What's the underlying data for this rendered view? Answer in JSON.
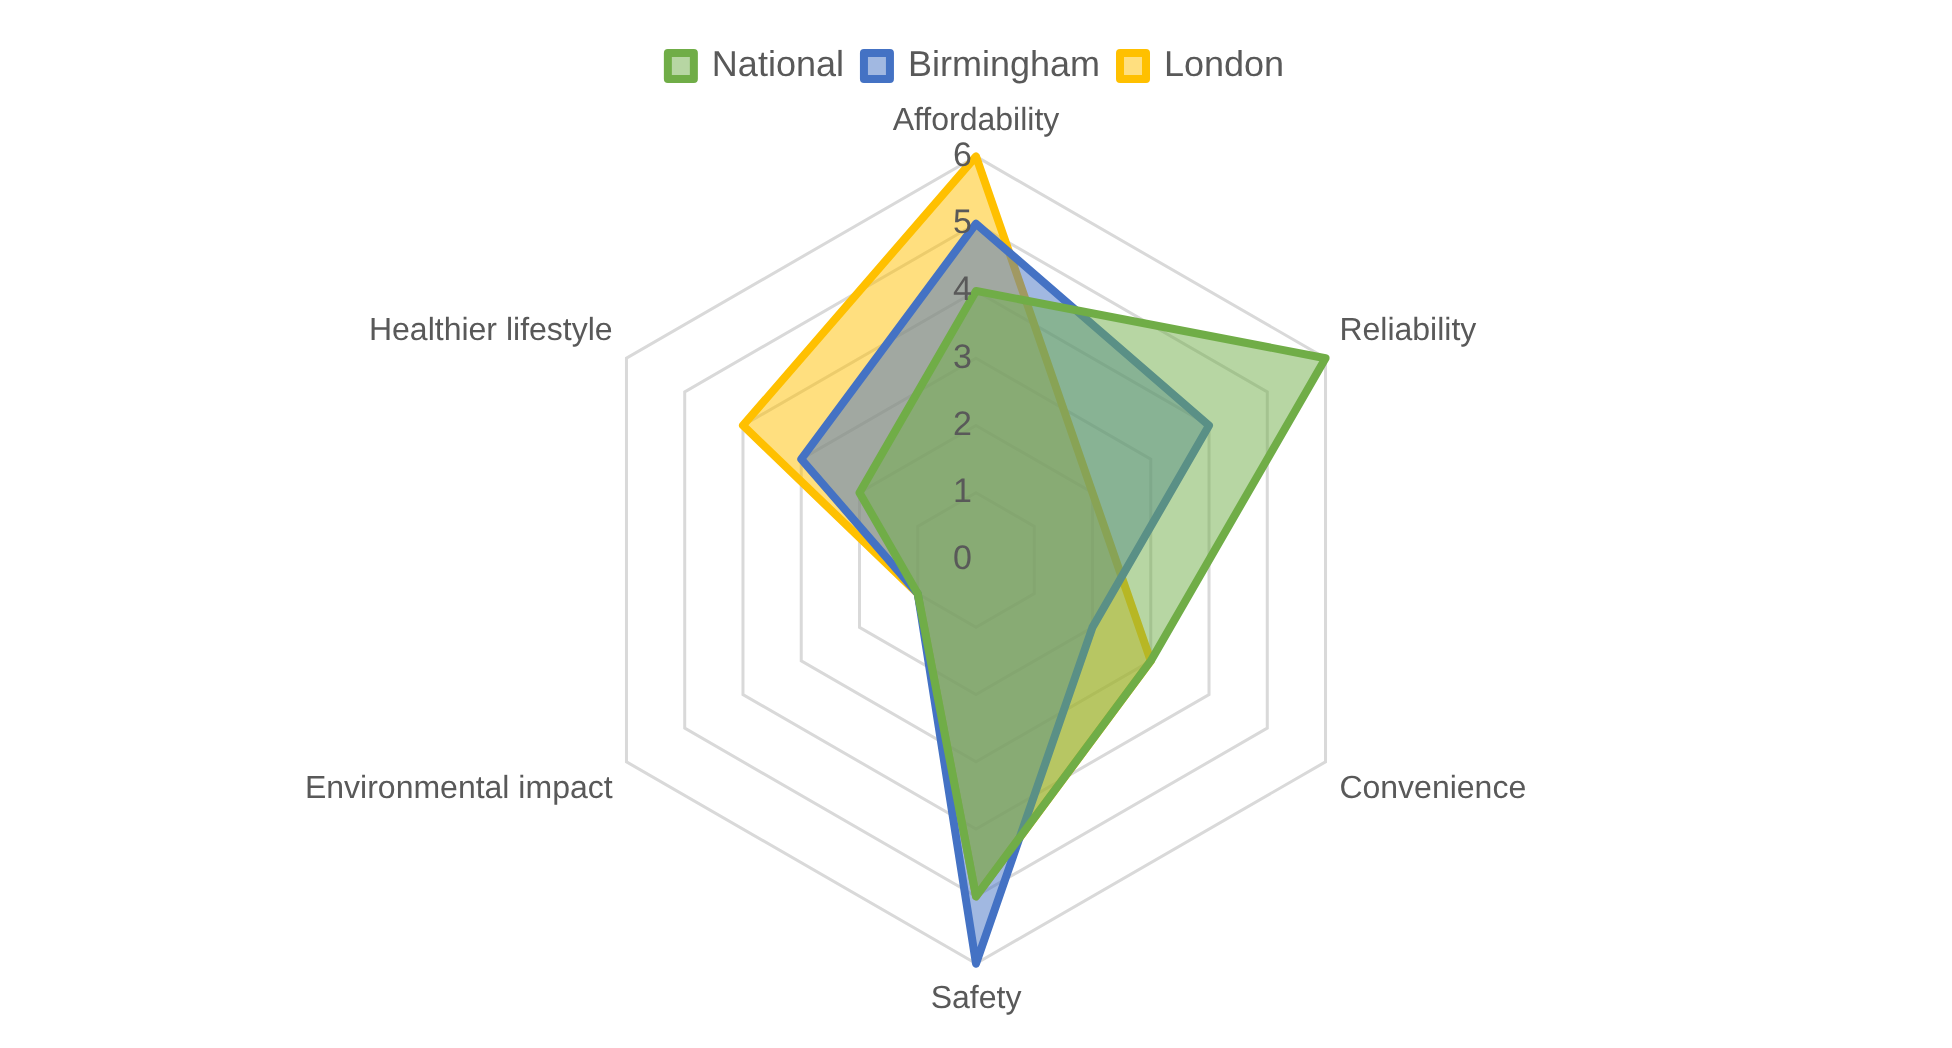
{
  "chart_data": {
    "type": "radar",
    "categories": [
      "Affordability",
      "Reliability",
      "Convenience",
      "Safety",
      "Environmental impact",
      "Healthier lifestyle"
    ],
    "series": [
      {
        "name": "National",
        "color": "#70ad47",
        "values": [
          4,
          6,
          3,
          5,
          1,
          2
        ]
      },
      {
        "name": "Birmingham",
        "color": "#4472c4",
        "values": [
          5,
          4,
          2,
          6,
          1,
          3
        ]
      },
      {
        "name": "London",
        "color": "#ffc000",
        "values": [
          6,
          2,
          3,
          5,
          1,
          4
        ]
      }
    ],
    "ylim": [
      0,
      6
    ],
    "yticks": [
      0,
      1,
      2,
      3,
      4,
      5,
      6
    ],
    "grid": true,
    "legend": "top",
    "marker": "none",
    "line_style": "solid"
  }
}
